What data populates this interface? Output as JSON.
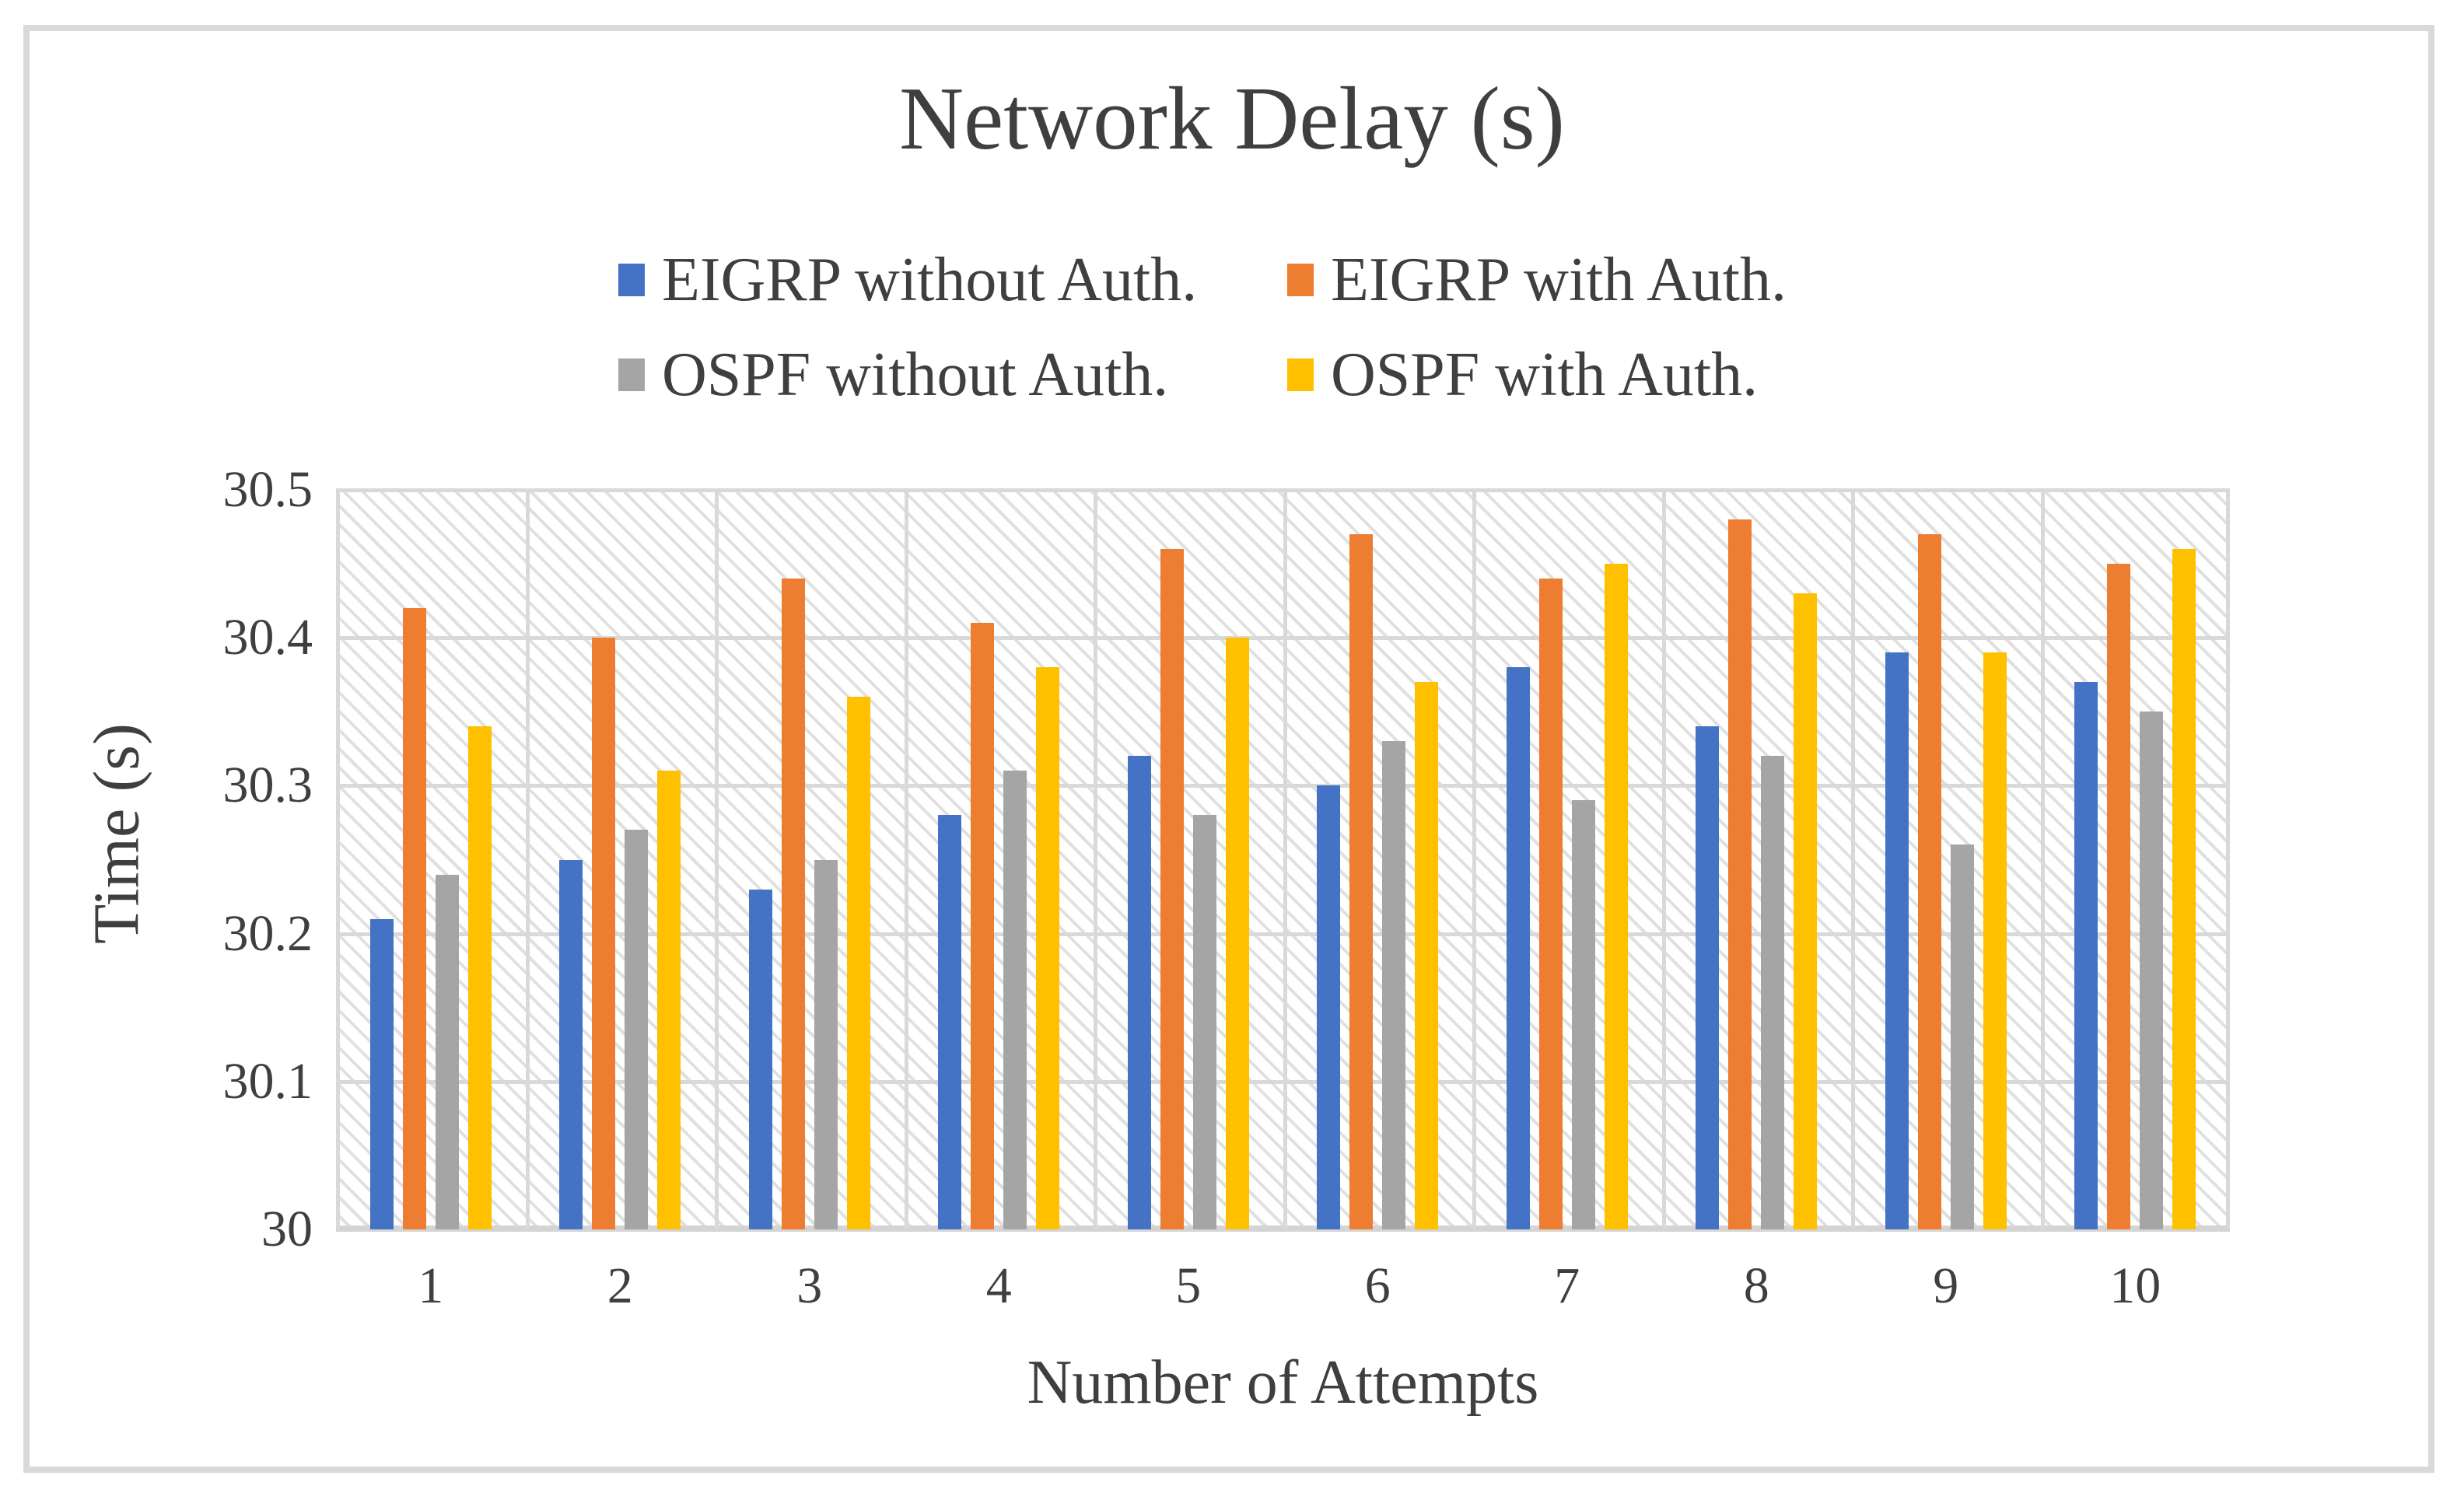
{
  "chart": {
    "title": "Network Delay (s)",
    "x_axis_title": "Number of Attempts",
    "y_axis_title": "Time (s)"
  },
  "chart_data": {
    "type": "bar",
    "title": "Network Delay (s)",
    "xlabel": "Number of Attempts",
    "ylabel": "Time (s)",
    "categories": [
      "1",
      "2",
      "3",
      "4",
      "5",
      "6",
      "7",
      "8",
      "9",
      "10"
    ],
    "series": [
      {
        "name": "EIGRP without Auth.",
        "color": "#4472C4",
        "values": [
          30.21,
          30.25,
          30.23,
          30.28,
          30.32,
          30.3,
          30.38,
          30.34,
          30.39,
          30.37
        ]
      },
      {
        "name": "EIGRP with Auth.",
        "color": "#ED7D31",
        "values": [
          30.42,
          30.4,
          30.44,
          30.41,
          30.46,
          30.47,
          30.44,
          30.48,
          30.47,
          30.45
        ]
      },
      {
        "name": "OSPF without Auth.",
        "color": "#A5A5A5",
        "values": [
          30.24,
          30.27,
          30.25,
          30.31,
          30.28,
          30.33,
          30.29,
          30.32,
          30.26,
          30.35
        ]
      },
      {
        "name": "OSPF with Auth.",
        "color": "#FFC000",
        "values": [
          30.34,
          30.31,
          30.36,
          30.38,
          30.4,
          30.37,
          30.45,
          30.43,
          30.39,
          30.46
        ]
      }
    ],
    "ylim": [
      30,
      30.5
    ],
    "yticks": [
      30,
      30.1,
      30.2,
      30.3,
      30.4,
      30.5
    ],
    "ytick_labels": [
      "30",
      "30.1",
      "30.2",
      "30.3",
      "30.4",
      "30.5"
    ],
    "grid": true,
    "legend_position": "top-two-rows",
    "plot_background": "light-diagonal-hatch"
  },
  "colors": {
    "text": "#3F3F3F",
    "gridline": "#D9D9D9",
    "chart_border": "#D9D9D9",
    "hatch_line": "#E0E0E0"
  }
}
